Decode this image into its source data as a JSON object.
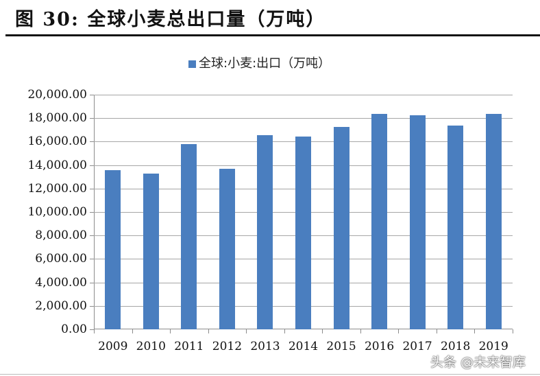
{
  "figure": {
    "title": "图  30:  全球小麦总出口量（万吨）",
    "watermark": "头条 @未来智库"
  },
  "legend": {
    "items": [
      {
        "label": "全球:小麦:出口（万吨）",
        "color": "#4472c4"
      }
    ]
  },
  "colors": {
    "bar": "#4a7ebf",
    "grid": "#a6a6a6",
    "axis": "#8c8c8c"
  },
  "y_ticks": [
    "0.00",
    "2,000.00",
    "4,000.00",
    "6,000.00",
    "8,000.00",
    "10,000.00",
    "12,000.00",
    "14,000.00",
    "16,000.00",
    "18,000.00",
    "20,000.00"
  ],
  "chart_data": {
    "type": "bar",
    "title": "全球小麦总出口量（万吨）",
    "categories": [
      "2009",
      "2010",
      "2011",
      "2012",
      "2013",
      "2014",
      "2015",
      "2016",
      "2017",
      "2018",
      "2019"
    ],
    "series": [
      {
        "name": "全球:小麦:出口（万吨）",
        "values": [
          13550,
          13250,
          15800,
          13700,
          16550,
          16450,
          17250,
          18350,
          18250,
          17350,
          18350
        ]
      }
    ],
    "xlabel": "",
    "ylabel": "",
    "ylim": [
      0,
      20000
    ],
    "ytick_step": 2000,
    "grid": true,
    "legend_position": "top"
  }
}
